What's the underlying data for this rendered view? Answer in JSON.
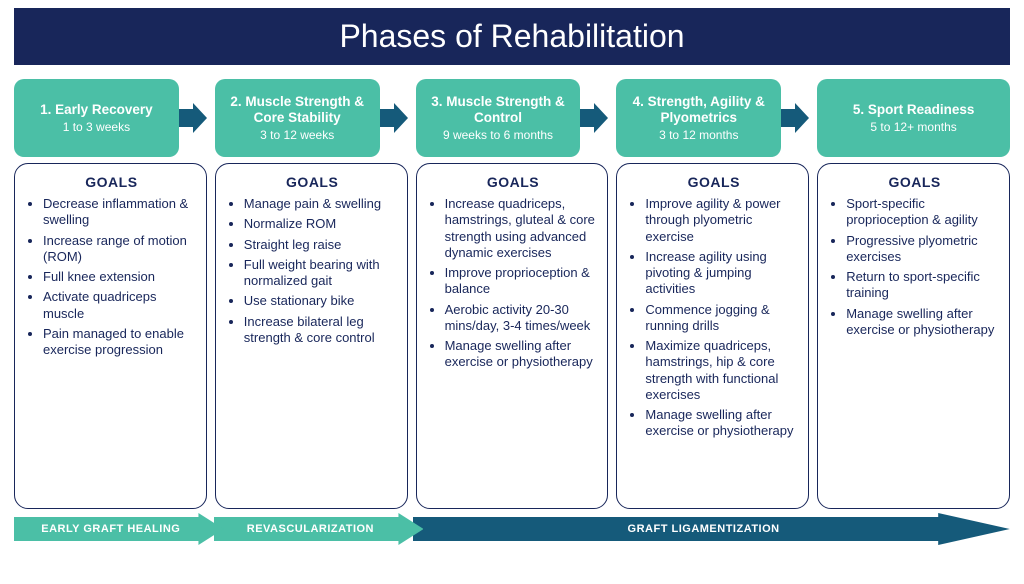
{
  "title": "Phases of Rehabilitation",
  "colors": {
    "header_bg": "#18265a",
    "header_text": "#ffffff",
    "phase_bg": "#4bbfa6",
    "phase_text": "#ffffff",
    "arrow_fill": "#155a7a",
    "box_border": "#18265a",
    "body_text": "#18265a",
    "bottom_arrow1": "#4bbfa6",
    "bottom_arrow2": "#4bbfa6",
    "bottom_arrow3": "#155a7a"
  },
  "goals_label": "GOALS",
  "phases": [
    {
      "title": "1. Early Recovery",
      "subtitle": "1 to 3 weeks",
      "goals": [
        "Decrease inflammation & swelling",
        "Increase range of motion (ROM)",
        "Full knee extension",
        "Activate quadriceps muscle",
        "Pain managed to enable exercise progression"
      ]
    },
    {
      "title": "2. Muscle Strength & Core Stability",
      "subtitle": "3 to 12 weeks",
      "goals": [
        "Manage pain & swelling",
        "Normalize ROM",
        "Straight leg raise",
        "Full weight bearing with normalized gait",
        "Use stationary bike",
        "Increase bilateral leg strength & core control"
      ]
    },
    {
      "title": "3. Muscle Strength & Control",
      "subtitle": "9 weeks to 6 months",
      "goals": [
        "Increase quadriceps, hamstrings, gluteal & core strength using advanced dynamic exercises",
        "Improve proprioception & balance",
        "Aerobic activity 20-30 mins/day, 3-4 times/week",
        "Manage swelling after exercise or physiotherapy"
      ]
    },
    {
      "title": "4. Strength, Agility & Plyometrics",
      "subtitle": "3 to 12 months",
      "goals": [
        "Improve agility & power through plyometric exercise",
        "Increase agility using pivoting & jumping activities",
        "Commence jogging & running drills",
        "Maximize quadriceps, hamstrings, hip & core strength with functional exercises",
        "Manage swelling after exercise or physiotherapy"
      ]
    },
    {
      "title": "5. Sport Readiness",
      "subtitle": "5 to 12+ months",
      "goals": [
        "Sport-specific proprioception & agility",
        "Progressive plyometric exercises",
        "Return to sport-specific training",
        "Manage swelling after exercise or physiotherapy"
      ]
    }
  ],
  "bottom_stages": [
    {
      "label": "EARLY GRAFT HEALING",
      "width_cols": 1,
      "color_key": "bottom_arrow1"
    },
    {
      "label": "REVASCULARIZATION",
      "width_cols": 1,
      "color_key": "bottom_arrow2"
    },
    {
      "label": "GRAFT LIGAMENTIZATION",
      "width_cols": 3,
      "color_key": "bottom_arrow3"
    }
  ]
}
